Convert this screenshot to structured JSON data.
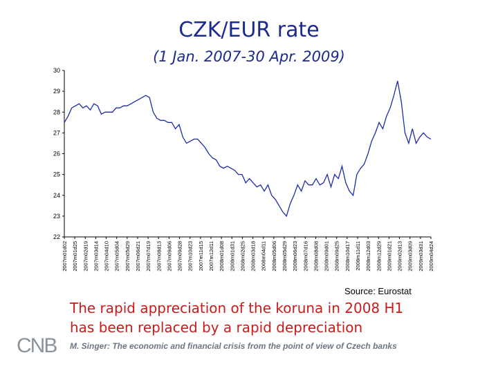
{
  "page": {
    "title": "CZK/EUR rate",
    "subtitle": "(1 Jan. 2007-30 Apr. 2009)",
    "source": "Source: Eurostat",
    "caption_line1": "The rapid appreciation of the koruna in 2008 H1",
    "caption_line2": "has been replaced by a rapid depreciation",
    "footer": "M. Singer: The economic and financial crisis from the point of view of Czech banks",
    "logo_text": "CNB"
  },
  "colors": {
    "title": "#1b2a8c",
    "line": "#1b2aa8",
    "caption": "#cc1a1a",
    "footer": "#6b7685",
    "logo": "#8a929c"
  },
  "chart_data": {
    "type": "line",
    "title": "CZK/EUR rate",
    "ylim": [
      22,
      30
    ],
    "yticks": [
      22,
      23,
      24,
      25,
      26,
      27,
      28,
      29,
      30
    ],
    "xticks": [
      "2007m01d02",
      "2007m01d25",
      "2007m02d19",
      "2007m03d14",
      "2007m04d10",
      "2007m05d04",
      "2007m05d29",
      "2007m06d21",
      "2007m07d19",
      "2007m08d13",
      "2007m09d06",
      "2007m09d28",
      "2007m10d23",
      "2007m11d15",
      "2007m12d11",
      "2008m01d08",
      "2008m01d31",
      "2008m02d25",
      "2008m03d18",
      "2008m04d11",
      "2008m05d06",
      "2008m05d29",
      "2008m06d23",
      "2008m07d16",
      "2008m08d08",
      "2008m09d01",
      "2008m09d25",
      "2008m10d17",
      "2008m11d11",
      "2008m12d03",
      "2008m12d29",
      "2009m01d21",
      "2009m02d13",
      "2009m03d09",
      "2009m03d31",
      "2009m04d24"
    ],
    "grid": false,
    "series": [
      {
        "values": [
          27.5,
          27.8,
          28.2,
          28.3,
          28.4,
          28.2,
          28.3,
          28.1,
          28.4,
          28.3,
          27.9,
          28.0,
          28.0,
          28.0,
          28.2,
          28.2,
          28.3,
          28.3,
          28.4,
          28.5,
          28.6,
          28.7,
          28.8,
          28.7,
          28.0,
          27.7,
          27.6,
          27.6,
          27.5,
          27.5,
          27.2,
          27.4,
          26.8,
          26.5,
          26.6,
          26.7,
          26.7,
          26.5,
          26.3,
          26.0,
          25.8,
          25.7,
          25.4,
          25.3,
          25.4,
          25.3,
          25.2,
          25.0,
          25.0,
          24.6,
          24.8,
          24.6,
          24.4,
          24.5,
          24.2,
          24.5,
          24.0,
          23.8,
          23.5,
          23.2,
          23.0,
          23.6,
          24.0,
          24.5,
          24.2,
          24.7,
          24.5,
          24.5,
          24.8,
          24.5,
          24.6,
          25.0,
          24.4,
          25.0,
          24.8,
          25.4,
          24.6,
          24.2,
          24.0,
          25.0,
          25.3,
          25.5,
          26.0,
          26.6,
          27.0,
          27.5,
          27.2,
          27.8,
          28.2,
          28.8,
          29.5,
          28.5,
          27.0,
          26.5,
          27.2,
          26.5,
          26.8,
          27.0,
          26.8,
          26.7
        ]
      }
    ]
  }
}
